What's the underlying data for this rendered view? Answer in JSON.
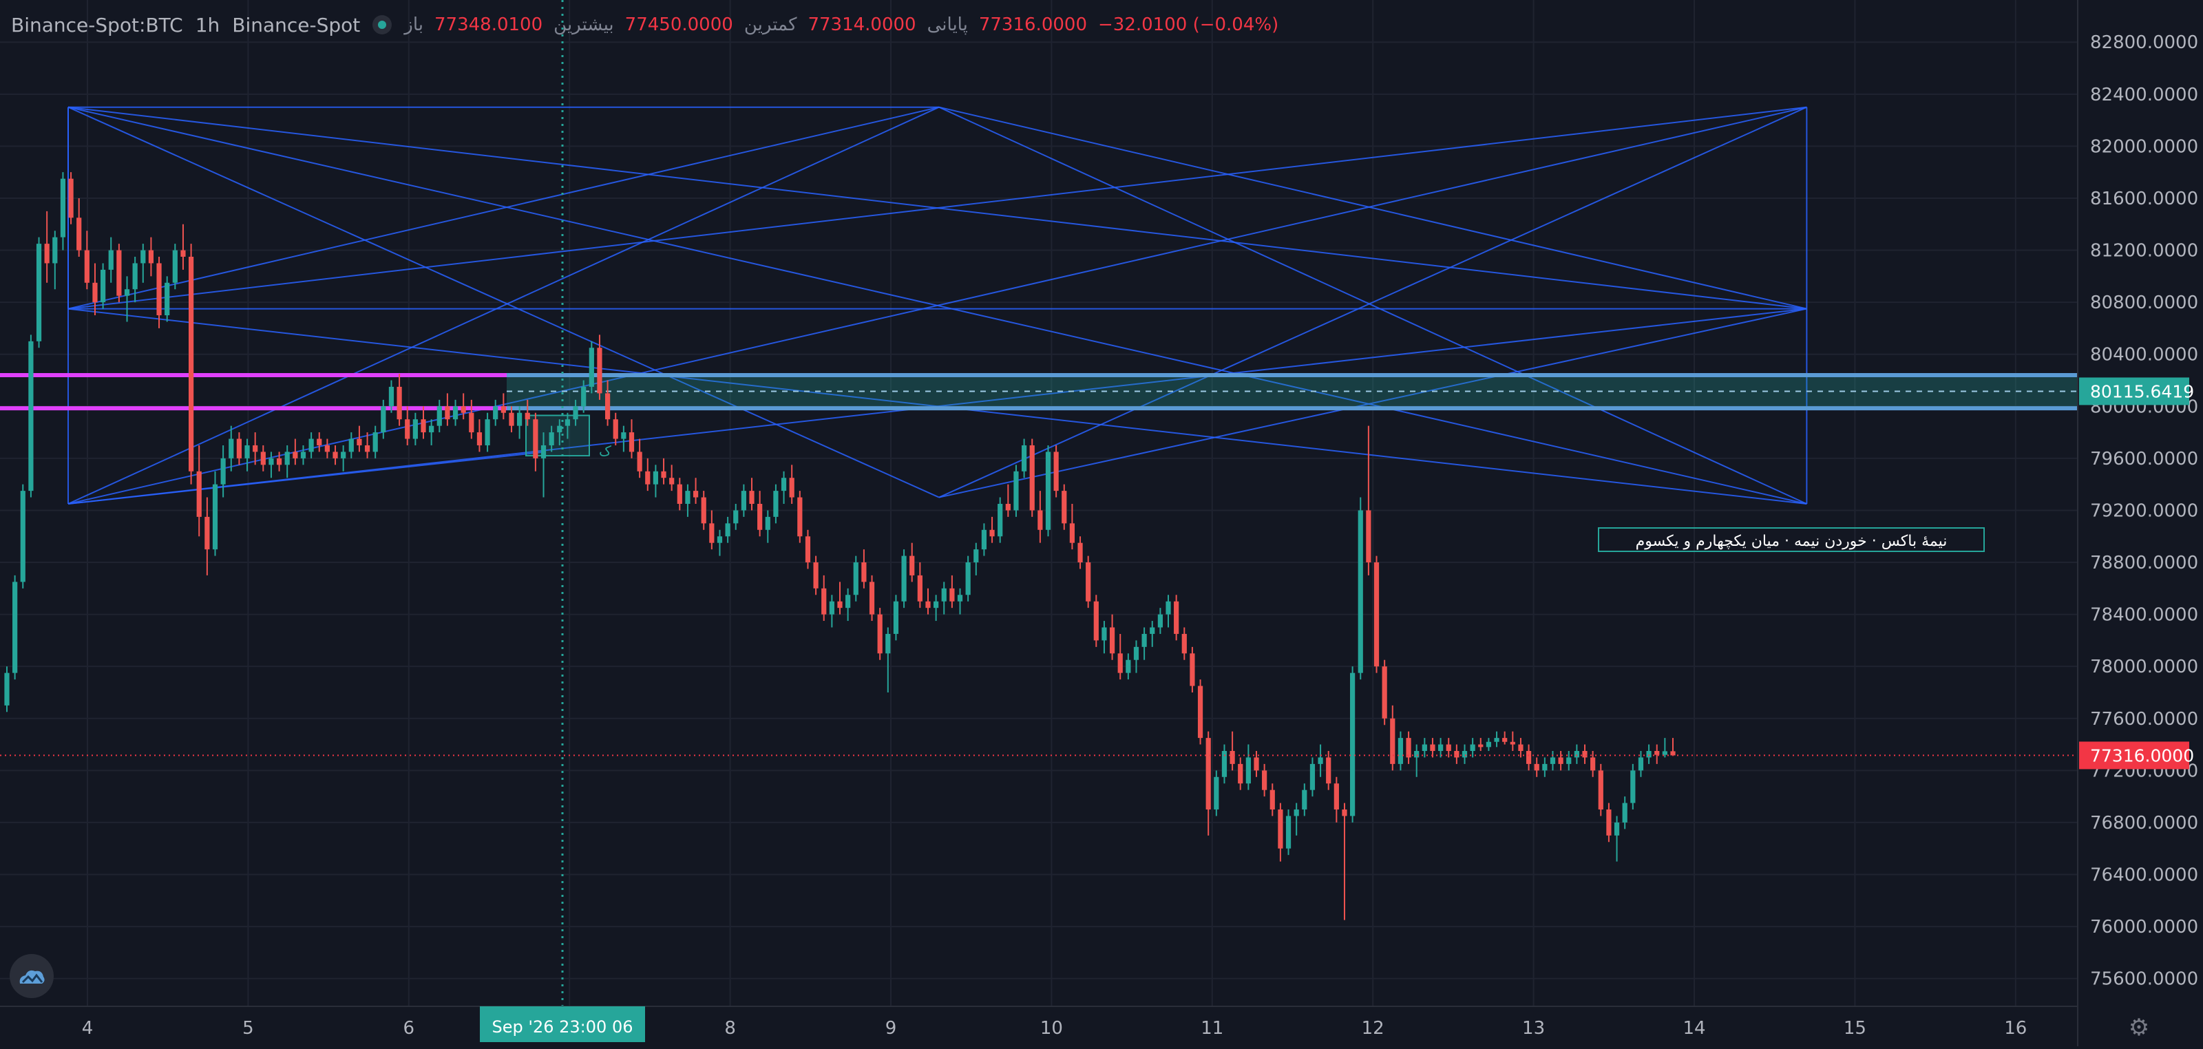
{
  "legend": {
    "symbol": "Binance-Spot:BTC",
    "interval": "1h",
    "exchange": "Binance-Spot",
    "open_label": "باز",
    "open": "77348.0100",
    "high_label": "بیشترین",
    "high": "77450.0000",
    "low_label": "کمترین",
    "low": "77314.0000",
    "close_label": "پایانی",
    "close": "77316.0000",
    "change": "−32.0100 (−0.04%)"
  },
  "colors": {
    "background": "#131722",
    "up": "#26a69a",
    "down": "#ef5350",
    "pattern_lines": "#2962ff",
    "magenta_levels": "#e040fb",
    "box_border": "#5b9bd5",
    "grid": "#1f2330"
  },
  "icons": {
    "logo": "cloud-logo-icon",
    "settings": "gear-icon"
  },
  "chart_data": {
    "type": "candlestick",
    "x_axis": {
      "ticks": [
        "4",
        "5",
        "6",
        "Sep '26   23:00 06",
        "8",
        "9",
        "10",
        "11",
        "12",
        "13",
        "14",
        "15",
        "16"
      ],
      "crosshair_label": "Sep '26   23:00 06"
    },
    "y_axis": {
      "ticks": [
        "82800.0000",
        "82400.0000",
        "82000.0000",
        "81600.0000",
        "81200.0000",
        "80800.0000",
        "80400.0000",
        "80000.0000",
        "79600.0000",
        "79200.0000",
        "78800.0000",
        "78400.0000",
        "78000.0000",
        "77600.0000",
        "77200.0000",
        "76800.0000",
        "76400.0000",
        "76000.0000",
        "75600.0000"
      ],
      "ylim": [
        75450,
        83050
      ]
    },
    "crosshair_price": "80115.6419",
    "last_price": "77316.0000",
    "annotation": "نیمهٔ باکس · خوردن نیمه · میان یکچهارم و یکسوم",
    "box_small_label": "ک",
    "levels": {
      "upper": 80240,
      "lower": 79985,
      "mid": 80115.6419
    },
    "candles": [
      [
        77700,
        78000,
        77650,
        77950
      ],
      [
        77950,
        78700,
        77900,
        78650
      ],
      [
        78650,
        79400,
        78600,
        79350
      ],
      [
        79350,
        80550,
        79300,
        80500
      ],
      [
        80500,
        81300,
        80450,
        81250
      ],
      [
        81250,
        81500,
        80950,
        81100
      ],
      [
        81100,
        81350,
        80900,
        81300
      ],
      [
        81300,
        81800,
        81200,
        81750
      ],
      [
        81750,
        81800,
        81400,
        81450
      ],
      [
        81450,
        81600,
        81150,
        81200
      ],
      [
        81200,
        81350,
        80900,
        80950
      ],
      [
        80950,
        81100,
        80700,
        80800
      ],
      [
        80800,
        81100,
        80750,
        81050
      ],
      [
        81050,
        81300,
        80950,
        81200
      ],
      [
        81200,
        81250,
        80800,
        80850
      ],
      [
        80850,
        81000,
        80650,
        80900
      ],
      [
        80900,
        81150,
        80800,
        81100
      ],
      [
        81100,
        81250,
        80950,
        81200
      ],
      [
        81200,
        81300,
        81000,
        81100
      ],
      [
        81100,
        81150,
        80600,
        80700
      ],
      [
        80700,
        81000,
        80650,
        80950
      ],
      [
        80950,
        81250,
        80900,
        81200
      ],
      [
        81200,
        81400,
        81050,
        81150
      ],
      [
        81150,
        81250,
        79400,
        79500
      ],
      [
        79500,
        79700,
        79000,
        79150
      ],
      [
        79150,
        79300,
        78700,
        78900
      ],
      [
        78900,
        79500,
        78850,
        79400
      ],
      [
        79400,
        79700,
        79300,
        79600
      ],
      [
        79600,
        79850,
        79500,
        79750
      ],
      [
        79750,
        79800,
        79550,
        79600
      ],
      [
        79600,
        79750,
        79500,
        79700
      ],
      [
        79700,
        79800,
        79550,
        79650
      ],
      [
        79650,
        79700,
        79500,
        79550
      ],
      [
        79550,
        79650,
        79450,
        79600
      ],
      [
        79600,
        79650,
        79500,
        79550
      ],
      [
        79550,
        79700,
        79450,
        79650
      ],
      [
        79650,
        79750,
        79550,
        79600
      ],
      [
        79600,
        79700,
        79550,
        79650
      ],
      [
        79650,
        79800,
        79600,
        79750
      ],
      [
        79750,
        79800,
        79650,
        79700
      ],
      [
        79700,
        79750,
        79600,
        79650
      ],
      [
        79650,
        79700,
        79550,
        79600
      ],
      [
        79600,
        79700,
        79500,
        79650
      ],
      [
        79650,
        79800,
        79600,
        79750
      ],
      [
        79750,
        79850,
        79650,
        79700
      ],
      [
        79700,
        79800,
        79600,
        79650
      ],
      [
        79650,
        79850,
        79600,
        79800
      ],
      [
        79800,
        80050,
        79750,
        80000
      ],
      [
        80000,
        80200,
        79950,
        80150
      ],
      [
        80150,
        80250,
        79850,
        79900
      ],
      [
        79900,
        80000,
        79700,
        79750
      ],
      [
        79750,
        79950,
        79700,
        79900
      ],
      [
        79900,
        80000,
        79750,
        79800
      ],
      [
        79800,
        79900,
        79700,
        79850
      ],
      [
        79850,
        80050,
        79800,
        80000
      ],
      [
        80000,
        80100,
        79850,
        79900
      ],
      [
        79900,
        80050,
        79850,
        80000
      ],
      [
        80000,
        80100,
        79900,
        79950
      ],
      [
        79950,
        80050,
        79750,
        79800
      ],
      [
        79800,
        79900,
        79650,
        79700
      ],
      [
        79700,
        79950,
        79650,
        79900
      ],
      [
        79900,
        80050,
        79850,
        80000
      ],
      [
        80000,
        80100,
        79900,
        79950
      ],
      [
        79950,
        80000,
        79800,
        79850
      ],
      [
        79850,
        80000,
        79750,
        79950
      ],
      [
        79950,
        80050,
        79850,
        79900
      ],
      [
        79900,
        79950,
        79500,
        79600
      ],
      [
        79600,
        79800,
        79300,
        79700
      ],
      [
        79700,
        79850,
        79650,
        79800
      ],
      [
        79800,
        79900,
        79700,
        79850
      ],
      [
        79850,
        79950,
        79750,
        79900
      ],
      [
        79900,
        80050,
        79850,
        80000
      ],
      [
        80000,
        80200,
        79950,
        80150
      ],
      [
        80150,
        80500,
        80100,
        80450
      ],
      [
        80450,
        80550,
        80050,
        80100
      ],
      [
        80100,
        80200,
        79850,
        79900
      ],
      [
        79900,
        79950,
        79700,
        79750
      ],
      [
        79750,
        79850,
        79650,
        79800
      ],
      [
        79800,
        79900,
        79600,
        79650
      ],
      [
        79650,
        79750,
        79450,
        79500
      ],
      [
        79500,
        79600,
        79350,
        79400
      ],
      [
        79400,
        79550,
        79300,
        79500
      ],
      [
        79500,
        79600,
        79400,
        79450
      ],
      [
        79450,
        79550,
        79350,
        79400
      ],
      [
        79400,
        79450,
        79200,
        79250
      ],
      [
        79250,
        79400,
        79150,
        79350
      ],
      [
        79350,
        79450,
        79250,
        79300
      ],
      [
        79300,
        79350,
        79050,
        79100
      ],
      [
        79100,
        79200,
        78900,
        78950
      ],
      [
        78950,
        79050,
        78850,
        79000
      ],
      [
        79000,
        79150,
        78950,
        79100
      ],
      [
        79100,
        79250,
        79050,
        79200
      ],
      [
        79200,
        79400,
        79150,
        79350
      ],
      [
        79350,
        79450,
        79200,
        79250
      ],
      [
        79250,
        79350,
        79000,
        79050
      ],
      [
        79050,
        79200,
        78950,
        79150
      ],
      [
        79150,
        79400,
        79100,
        79350
      ],
      [
        79350,
        79500,
        79250,
        79450
      ],
      [
        79450,
        79550,
        79250,
        79300
      ],
      [
        79300,
        79350,
        78950,
        79000
      ],
      [
        79000,
        79050,
        78750,
        78800
      ],
      [
        78800,
        78850,
        78550,
        78600
      ],
      [
        78600,
        78700,
        78350,
        78400
      ],
      [
        78400,
        78550,
        78300,
        78500
      ],
      [
        78500,
        78650,
        78400,
        78450
      ],
      [
        78450,
        78600,
        78350,
        78550
      ],
      [
        78550,
        78850,
        78500,
        78800
      ],
      [
        78800,
        78900,
        78600,
        78650
      ],
      [
        78650,
        78700,
        78350,
        78400
      ],
      [
        78400,
        78450,
        78050,
        78100
      ],
      [
        78100,
        78300,
        77800,
        78250
      ],
      [
        78250,
        78550,
        78200,
        78500
      ],
      [
        78500,
        78900,
        78450,
        78850
      ],
      [
        78850,
        78950,
        78650,
        78700
      ],
      [
        78700,
        78800,
        78450,
        78500
      ],
      [
        78500,
        78600,
        78400,
        78450
      ],
      [
        78450,
        78550,
        78350,
        78500
      ],
      [
        78500,
        78650,
        78400,
        78600
      ],
      [
        78600,
        78700,
        78450,
        78500
      ],
      [
        78500,
        78600,
        78400,
        78550
      ],
      [
        78550,
        78850,
        78500,
        78800
      ],
      [
        78800,
        78950,
        78700,
        78900
      ],
      [
        78900,
        79100,
        78850,
        79050
      ],
      [
        79050,
        79150,
        78950,
        79000
      ],
      [
        79000,
        79300,
        78950,
        79250
      ],
      [
        79250,
        79400,
        79150,
        79200
      ],
      [
        79200,
        79550,
        79150,
        79500
      ],
      [
        79500,
        79750,
        79450,
        79700
      ],
      [
        79700,
        79750,
        79150,
        79200
      ],
      [
        79200,
        79350,
        78950,
        79050
      ],
      [
        79050,
        79700,
        79000,
        79650
      ],
      [
        79650,
        79700,
        79300,
        79350
      ],
      [
        79350,
        79400,
        79050,
        79100
      ],
      [
        79100,
        79250,
        78900,
        78950
      ],
      [
        78950,
        79000,
        78750,
        78800
      ],
      [
        78800,
        78850,
        78450,
        78500
      ],
      [
        78500,
        78550,
        78150,
        78200
      ],
      [
        78200,
        78350,
        78100,
        78300
      ],
      [
        78300,
        78400,
        78050,
        78100
      ],
      [
        78100,
        78250,
        77900,
        77950
      ],
      [
        77950,
        78100,
        77900,
        78050
      ],
      [
        78050,
        78200,
        77950,
        78150
      ],
      [
        78150,
        78300,
        78050,
        78250
      ],
      [
        78250,
        78350,
        78150,
        78300
      ],
      [
        78300,
        78450,
        78250,
        78400
      ],
      [
        78400,
        78550,
        78300,
        78500
      ],
      [
        78500,
        78550,
        78200,
        78250
      ],
      [
        78250,
        78300,
        78050,
        78100
      ],
      [
        78100,
        78150,
        77800,
        77850
      ],
      [
        77850,
        77900,
        77400,
        77450
      ],
      [
        77450,
        77500,
        76700,
        76900
      ],
      [
        76900,
        77200,
        76850,
        77150
      ],
      [
        77150,
        77400,
        77100,
        77350
      ],
      [
        77350,
        77500,
        77200,
        77250
      ],
      [
        77250,
        77300,
        77050,
        77100
      ],
      [
        77100,
        77400,
        77050,
        77300
      ],
      [
        77300,
        77350,
        77150,
        77200
      ],
      [
        77200,
        77250,
        77000,
        77050
      ],
      [
        77050,
        77100,
        76850,
        76900
      ],
      [
        76900,
        76950,
        76500,
        76600
      ],
      [
        76600,
        76900,
        76550,
        76850
      ],
      [
        76850,
        76950,
        76700,
        76900
      ],
      [
        76900,
        77100,
        76850,
        77050
      ],
      [
        77050,
        77300,
        77000,
        77250
      ],
      [
        77250,
        77400,
        77150,
        77300
      ],
      [
        77300,
        77350,
        77050,
        77100
      ],
      [
        77100,
        77150,
        76800,
        76900
      ],
      [
        76900,
        76950,
        76050,
        76850
      ],
      [
        76850,
        78000,
        76800,
        77950
      ],
      [
        77950,
        79300,
        77900,
        79200
      ],
      [
        79200,
        79850,
        78700,
        78800
      ],
      [
        78800,
        78850,
        77950,
        78000
      ],
      [
        78000,
        78050,
        77550,
        77600
      ],
      [
        77600,
        77700,
        77200,
        77250
      ],
      [
        77250,
        77500,
        77200,
        77450
      ],
      [
        77450,
        77500,
        77250,
        77300
      ],
      [
        77300,
        77400,
        77150,
        77350
      ],
      [
        77350,
        77450,
        77300,
        77400
      ],
      [
        77400,
        77450,
        77300,
        77350
      ],
      [
        77350,
        77450,
        77300,
        77400
      ],
      [
        77400,
        77450,
        77300,
        77350
      ],
      [
        77350,
        77400,
        77250,
        77300
      ],
      [
        77300,
        77400,
        77250,
        77350
      ],
      [
        77350,
        77450,
        77300,
        77400
      ],
      [
        77400,
        77450,
        77350,
        77380
      ],
      [
        77380,
        77450,
        77350,
        77420
      ],
      [
        77420,
        77500,
        77380,
        77450
      ],
      [
        77450,
        77500,
        77400,
        77420
      ],
      [
        77420,
        77500,
        77350,
        77400
      ],
      [
        77400,
        77450,
        77300,
        77350
      ],
      [
        77350,
        77400,
        77200,
        77250
      ],
      [
        77250,
        77300,
        77150,
        77200
      ],
      [
        77200,
        77300,
        77150,
        77250
      ],
      [
        77250,
        77350,
        77200,
        77300
      ],
      [
        77300,
        77350,
        77200,
        77250
      ],
      [
        77250,
        77350,
        77200,
        77300
      ],
      [
        77300,
        77400,
        77250,
        77350
      ],
      [
        77350,
        77400,
        77250,
        77300
      ],
      [
        77300,
        77350,
        77150,
        77200
      ],
      [
        77200,
        77250,
        76850,
        76900
      ],
      [
        76900,
        76950,
        76650,
        76700
      ],
      [
        76700,
        76850,
        76500,
        76800
      ],
      [
        76800,
        77000,
        76750,
        76950
      ],
      [
        76950,
        77250,
        76900,
        77200
      ],
      [
        77200,
        77350,
        77150,
        77300
      ],
      [
        77300,
        77400,
        77250,
        77350
      ],
      [
        77350,
        77400,
        77250,
        77320
      ],
      [
        77320,
        77450,
        77300,
        77348
      ],
      [
        77348,
        77450,
        77314,
        77316
      ]
    ]
  }
}
